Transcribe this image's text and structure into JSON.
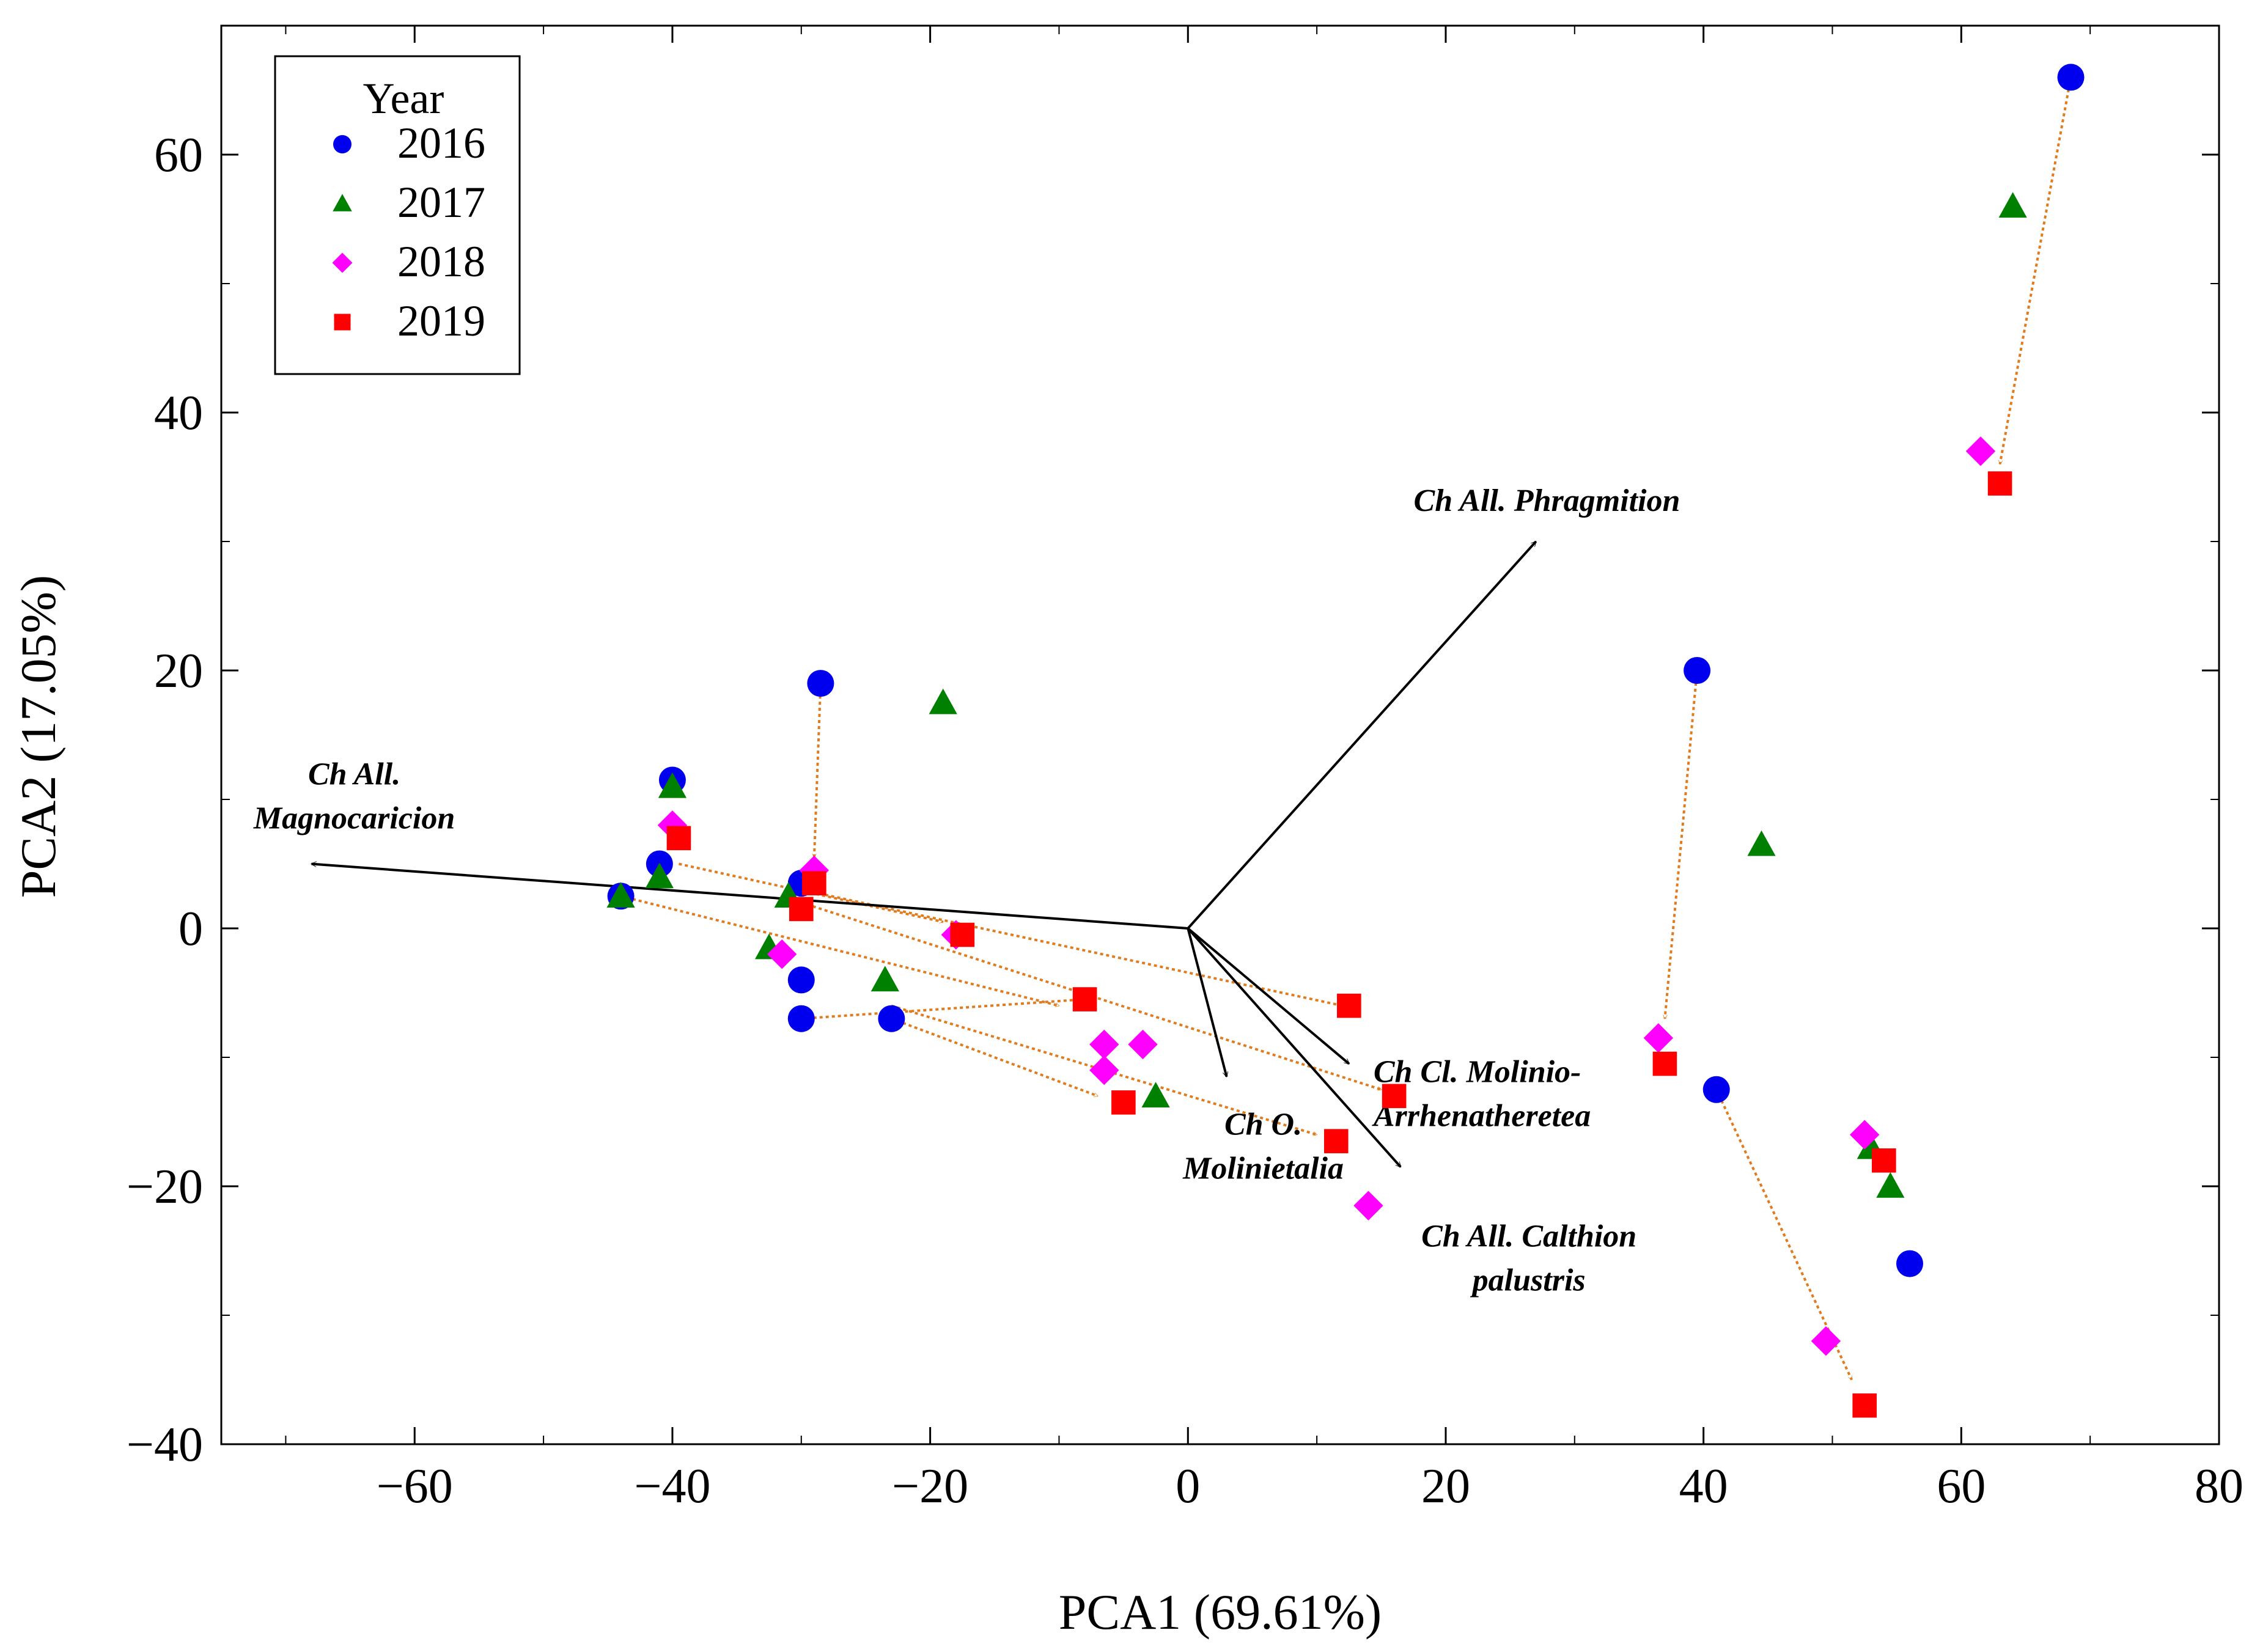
{
  "chart_data": {
    "type": "scatter",
    "xlabel": "PCA1 (69.61%)",
    "ylabel": "PCA2 (17.05%)",
    "xlim": [
      -75,
      80
    ],
    "ylim": [
      -40,
      70
    ],
    "xticks": [
      -60,
      -40,
      -20,
      0,
      20,
      40,
      60,
      80
    ],
    "yticks": [
      -40,
      -20,
      0,
      20,
      40,
      60
    ],
    "tick_labels": {
      "x": [
        "−60",
        "−40",
        "−20",
        "0",
        "20",
        "40",
        "60",
        "80"
      ],
      "y": [
        "−40",
        "−20",
        "0",
        "20",
        "40",
        "60"
      ]
    },
    "legend": {
      "title": "Year",
      "position": "top-left",
      "entries": [
        {
          "label": "2016",
          "marker": "circle",
          "color": "#0000ee"
        },
        {
          "label": "2017",
          "marker": "triangle",
          "color": "#008000"
        },
        {
          "label": "2018",
          "marker": "diamond",
          "color": "#ff00ff"
        },
        {
          "label": "2019",
          "marker": "square",
          "color": "#ff0000"
        }
      ]
    },
    "series": [
      {
        "name": "2016",
        "marker": "circle",
        "color": "#0000ee",
        "points": [
          [
            68.5,
            66
          ],
          [
            39.5,
            20
          ],
          [
            41,
            -12.5
          ],
          [
            56,
            -26
          ],
          [
            -28.5,
            19
          ],
          [
            -40,
            11.5
          ],
          [
            -41,
            5
          ],
          [
            -44,
            2.5
          ],
          [
            -30,
            3.5
          ],
          [
            -30,
            -4
          ],
          [
            -30,
            -7
          ],
          [
            -23,
            -7
          ]
        ]
      },
      {
        "name": "2017",
        "marker": "triangle",
        "color": "#008000",
        "points": [
          [
            64,
            56
          ],
          [
            -19,
            17.5
          ],
          [
            44.5,
            6.5
          ],
          [
            53,
            -17
          ],
          [
            54.5,
            -20
          ],
          [
            -2.5,
            -13
          ],
          [
            -23.5,
            -4
          ],
          [
            -32.5,
            -1.5
          ],
          [
            -40,
            11
          ],
          [
            -41,
            4
          ],
          [
            -44,
            2.5
          ],
          [
            -31,
            2.5
          ]
        ]
      },
      {
        "name": "2018",
        "marker": "diamond",
        "color": "#ff00ff",
        "points": [
          [
            61.5,
            37
          ],
          [
            36.5,
            -8.5
          ],
          [
            52.5,
            -16
          ],
          [
            49.5,
            -32
          ],
          [
            14,
            -21.5
          ],
          [
            -40,
            8
          ],
          [
            -29,
            4.5
          ],
          [
            -31.5,
            -2
          ],
          [
            -18,
            -0.5
          ],
          [
            -6.5,
            -9
          ],
          [
            -6.5,
            -11
          ],
          [
            -3.5,
            -9
          ]
        ]
      },
      {
        "name": "2019",
        "marker": "square",
        "color": "#ff0000",
        "points": [
          [
            63,
            34.5
          ],
          [
            37,
            -10.5
          ],
          [
            54,
            -18
          ],
          [
            52.5,
            -37
          ],
          [
            -39.5,
            7
          ],
          [
            -29,
            3.5
          ],
          [
            -30,
            1.5
          ],
          [
            -17.5,
            -0.5
          ],
          [
            -8,
            -5.5
          ],
          [
            -5,
            -13.5
          ],
          [
            12.5,
            -6
          ],
          [
            16,
            -13
          ],
          [
            11.5,
            -16.5
          ]
        ]
      }
    ],
    "trajectories": [
      {
        "from": [
          68.5,
          66
        ],
        "to": [
          63,
          36
        ]
      },
      {
        "from": [
          39.5,
          20
        ],
        "to": [
          37,
          -7
        ]
      },
      {
        "from": [
          41,
          -12.5
        ],
        "to": [
          51.5,
          -35
        ]
      },
      {
        "from": [
          -28.5,
          19
        ],
        "to": [
          -29,
          5.5
        ]
      },
      {
        "from": [
          -39.5,
          5
        ],
        "to": [
          -19,
          0.5
        ]
      },
      {
        "from": [
          -44,
          2.5
        ],
        "to": [
          -10,
          -6
        ]
      },
      {
        "from": [
          -30,
          3
        ],
        "to": [
          12,
          -6
        ]
      },
      {
        "from": [
          -30,
          2
        ],
        "to": [
          15,
          -12.5
        ]
      },
      {
        "from": [
          -23,
          -7
        ],
        "to": [
          -7,
          -13
        ]
      },
      {
        "from": [
          -30,
          -7
        ],
        "to": [
          -8,
          -5.5
        ]
      },
      {
        "from": [
          -23,
          -6
        ],
        "to": [
          10,
          -16
        ]
      }
    ],
    "loadings": [
      {
        "label": [
          "Ch All. Phragmition"
        ],
        "x": 27,
        "y": 30,
        "label_anchor": "start"
      },
      {
        "label": [
          "Ch All.",
          "Magnocaricion"
        ],
        "x": -68,
        "y": 5,
        "label_anchor": "middle"
      },
      {
        "label": [
          "Ch Cl. Molinio-",
          "Arrhenatheretea"
        ],
        "x": 12.5,
        "y": -10.5,
        "label_anchor": "start"
      },
      {
        "label": [
          "Ch O.",
          "Molinietalia"
        ],
        "x": 3,
        "y": -11.5,
        "label_anchor": "middle"
      },
      {
        "label": [
          "Ch All. Calthion",
          "palustris"
        ],
        "x": 16.5,
        "y": -18.5,
        "label_anchor": "middle"
      }
    ]
  }
}
